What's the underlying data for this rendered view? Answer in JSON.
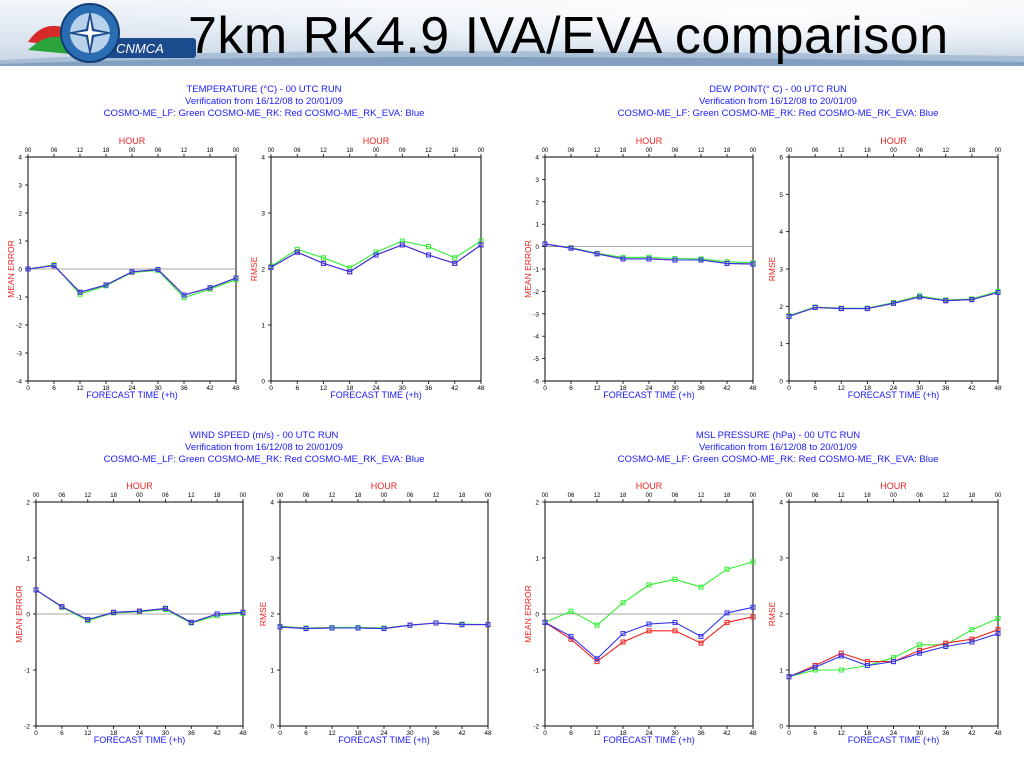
{
  "slide": {
    "title": "7km RK4.9 IVA/EVA comparison",
    "logo_text": "CNMCA"
  },
  "colors": {
    "green": "#33ee33",
    "red": "#ee2222",
    "blue": "#3333ee",
    "title_blue": "#1a1aff",
    "label_red": "#ee2222",
    "axis": "#000000"
  },
  "panels": [
    {
      "id": "temperature",
      "title_line1": "TEMPERATURE (°C) - 00 UTC RUN",
      "title_line2": "Verification from 16/12/08 to 20/01/09",
      "title_line3": "COSMO-ME_LF: Green  COSMO-ME_RK: Red  COSMO-ME_RK_EVA: Blue",
      "hour_label": "HOUR",
      "xlabel": "FORECAST TIME (+h)"
    },
    {
      "id": "dewpoint",
      "title_line1": "DEW POINT(° C) - 00 UTC RUN",
      "title_line2": "Verification from 16/12/08 to 20/01/09",
      "title_line3": "COSMO-ME_LF: Green  COSMO-ME_RK: Red  COSMO-ME_RK_EVA: Blue",
      "hour_label": "HOUR",
      "xlabel": "FORECAST TIME (+h)"
    },
    {
      "id": "windspeed",
      "title_line1": "WIND SPEED (m/s) - 00 UTC RUN",
      "title_line2": "Verification from 16/12/08 to 20/01/09",
      "title_line3": "COSMO-ME_LF: Green  COSMO-ME_RK: Red  COSMO-ME_RK_EVA: Blue",
      "hour_label": "HOUR",
      "xlabel": "FORECAST TIME (+h)"
    },
    {
      "id": "mslpressure",
      "title_line1": "MSL PRESSURE (hPa) - 00 UTC RUN",
      "title_line2": "Verification from 16/12/08 to 20/01/09",
      "title_line3": "COSMO-ME_LF: Green  COSMO-ME_RK: Red  COSMO-ME_RK_EVA: Blue",
      "hour_label": "HOUR",
      "xlabel": "FORECAST TIME (+h)"
    }
  ],
  "chart_data": [
    {
      "type": "line",
      "panel": "temperature",
      "metric": "me",
      "ylabel": "MEAN ERROR",
      "xlabel": "FORECAST TIME (+h)",
      "x": [
        0,
        6,
        12,
        18,
        24,
        30,
        36,
        42,
        48
      ],
      "xlim": [
        0,
        48
      ],
      "ylim": [
        -4,
        4
      ],
      "yticks": [
        -4,
        -3,
        -2,
        -1,
        0,
        1,
        2,
        3,
        4
      ],
      "top_ticks": [
        "00",
        "06",
        "12",
        "18",
        "00",
        "06",
        "12",
        "18",
        "00"
      ],
      "zero_line": true,
      "series": [
        {
          "color": "green",
          "values": [
            0.0,
            0.15,
            -0.9,
            -0.6,
            -0.12,
            -0.05,
            -1.02,
            -0.72,
            -0.38
          ]
        },
        {
          "color": "red",
          "values": [
            0.0,
            0.12,
            -0.83,
            -0.57,
            -0.1,
            -0.02,
            -0.93,
            -0.67,
            -0.32
          ]
        },
        {
          "color": "blue",
          "values": [
            0.0,
            0.12,
            -0.83,
            -0.57,
            -0.1,
            -0.02,
            -0.93,
            -0.67,
            -0.32
          ]
        }
      ]
    },
    {
      "type": "line",
      "panel": "temperature",
      "metric": "rmse",
      "ylabel": "RMSE",
      "xlabel": "FORECAST TIME (+h)",
      "x": [
        0,
        6,
        12,
        18,
        24,
        30,
        36,
        42,
        48
      ],
      "xlim": [
        0,
        48
      ],
      "ylim": [
        0,
        4
      ],
      "yticks": [
        0,
        1,
        2,
        3,
        4
      ],
      "top_ticks": [
        "00",
        "06",
        "12",
        "18",
        "00",
        "06",
        "12",
        "18",
        "00"
      ],
      "zero_line": false,
      "series": [
        {
          "color": "green",
          "values": [
            2.05,
            2.35,
            2.2,
            2.02,
            2.3,
            2.5,
            2.4,
            2.2,
            2.5
          ]
        },
        {
          "color": "red",
          "values": [
            2.03,
            2.3,
            2.1,
            1.95,
            2.25,
            2.43,
            2.25,
            2.1,
            2.43
          ]
        },
        {
          "color": "blue",
          "values": [
            2.03,
            2.3,
            2.1,
            1.95,
            2.25,
            2.43,
            2.25,
            2.1,
            2.43
          ]
        }
      ]
    },
    {
      "type": "line",
      "panel": "dewpoint",
      "metric": "me",
      "ylabel": "MEAN ERROR",
      "xlabel": "FORECAST TIME (+h)",
      "x": [
        0,
        6,
        12,
        18,
        24,
        30,
        36,
        42,
        48
      ],
      "xlim": [
        0,
        48
      ],
      "ylim": [
        -6,
        4
      ],
      "yticks": [
        -6,
        -5,
        -4,
        -3,
        -2,
        -1,
        0,
        1,
        2,
        3,
        4
      ],
      "top_ticks": [
        "00",
        "06",
        "12",
        "18",
        "00",
        "06",
        "12",
        "18",
        "00"
      ],
      "zero_line": true,
      "series": [
        {
          "color": "green",
          "values": [
            0.12,
            -0.05,
            -0.3,
            -0.48,
            -0.48,
            -0.53,
            -0.55,
            -0.68,
            -0.72
          ]
        },
        {
          "color": "red",
          "values": [
            0.12,
            -0.07,
            -0.32,
            -0.55,
            -0.55,
            -0.6,
            -0.6,
            -0.75,
            -0.78
          ]
        },
        {
          "color": "blue",
          "values": [
            0.12,
            -0.07,
            -0.32,
            -0.55,
            -0.55,
            -0.6,
            -0.6,
            -0.75,
            -0.78
          ]
        }
      ]
    },
    {
      "type": "line",
      "panel": "dewpoint",
      "metric": "rmse",
      "ylabel": "RMSE",
      "xlabel": "FORECAST TIME (+h)",
      "x": [
        0,
        6,
        12,
        18,
        24,
        30,
        36,
        42,
        48
      ],
      "xlim": [
        0,
        48
      ],
      "ylim": [
        0,
        6
      ],
      "yticks": [
        0,
        1,
        2,
        3,
        4,
        5,
        6
      ],
      "top_ticks": [
        "00",
        "06",
        "12",
        "18",
        "00",
        "06",
        "12",
        "18",
        "00"
      ],
      "zero_line": false,
      "series": [
        {
          "color": "green",
          "values": [
            1.75,
            1.98,
            1.95,
            1.95,
            2.1,
            2.28,
            2.17,
            2.2,
            2.4
          ]
        },
        {
          "color": "red",
          "values": [
            1.73,
            1.97,
            1.94,
            1.94,
            2.08,
            2.25,
            2.15,
            2.18,
            2.37
          ]
        },
        {
          "color": "blue",
          "values": [
            1.73,
            1.97,
            1.94,
            1.94,
            2.08,
            2.25,
            2.15,
            2.18,
            2.37
          ]
        }
      ]
    },
    {
      "type": "line",
      "panel": "windspeed",
      "metric": "me",
      "ylabel": "MEAN ERROR",
      "xlabel": "FORECAST TIME (+h)",
      "x": [
        0,
        6,
        12,
        18,
        24,
        30,
        36,
        42,
        48
      ],
      "xlim": [
        0,
        48
      ],
      "ylim": [
        -2,
        2
      ],
      "yticks": [
        -2,
        -1,
        0,
        1,
        2
      ],
      "top_ticks": [
        "00",
        "06",
        "12",
        "18",
        "00",
        "06",
        "12",
        "18",
        "00"
      ],
      "zero_line": true,
      "series": [
        {
          "color": "green",
          "values": [
            0.43,
            0.12,
            -0.12,
            0.02,
            0.04,
            0.08,
            -0.16,
            -0.03,
            0.01
          ]
        },
        {
          "color": "red",
          "values": [
            0.43,
            0.13,
            -0.1,
            0.03,
            0.05,
            0.1,
            -0.15,
            0.0,
            0.03
          ]
        },
        {
          "color": "blue",
          "values": [
            0.43,
            0.13,
            -0.1,
            0.03,
            0.05,
            0.1,
            -0.15,
            0.0,
            0.03
          ]
        }
      ]
    },
    {
      "type": "line",
      "panel": "windspeed",
      "metric": "rmse",
      "ylabel": "RMSE",
      "xlabel": "FORECAST TIME (+h)",
      "x": [
        0,
        6,
        12,
        18,
        24,
        30,
        36,
        42,
        48
      ],
      "xlim": [
        0,
        48
      ],
      "ylim": [
        0,
        4
      ],
      "yticks": [
        0,
        1,
        2,
        3,
        4
      ],
      "top_ticks": [
        "00",
        "06",
        "12",
        "18",
        "00",
        "06",
        "12",
        "18",
        "00"
      ],
      "zero_line": false,
      "series": [
        {
          "color": "green",
          "values": [
            1.78,
            1.75,
            1.76,
            1.76,
            1.75,
            1.8,
            1.84,
            1.82,
            1.81
          ]
        },
        {
          "color": "red",
          "values": [
            1.77,
            1.74,
            1.75,
            1.75,
            1.74,
            1.8,
            1.84,
            1.81,
            1.81
          ]
        },
        {
          "color": "blue",
          "values": [
            1.77,
            1.74,
            1.75,
            1.75,
            1.74,
            1.8,
            1.84,
            1.81,
            1.81
          ]
        }
      ]
    },
    {
      "type": "line",
      "panel": "mslpressure",
      "metric": "me",
      "ylabel": "MEAN ERROR",
      "xlabel": "FORECAST TIME (+h)",
      "x": [
        0,
        6,
        12,
        18,
        24,
        30,
        36,
        42,
        48
      ],
      "xlim": [
        0,
        48
      ],
      "ylim": [
        -2,
        2
      ],
      "yticks": [
        -2,
        -1,
        0,
        1,
        2
      ],
      "top_ticks": [
        "00",
        "06",
        "12",
        "18",
        "00",
        "06",
        "12",
        "18",
        "00"
      ],
      "zero_line": true,
      "series": [
        {
          "color": "green",
          "values": [
            -0.15,
            0.05,
            -0.2,
            0.2,
            0.52,
            0.62,
            0.48,
            0.8,
            0.93
          ]
        },
        {
          "color": "red",
          "values": [
            -0.15,
            -0.45,
            -0.85,
            -0.5,
            -0.3,
            -0.3,
            -0.52,
            -0.15,
            -0.05
          ]
        },
        {
          "color": "blue",
          "values": [
            -0.15,
            -0.4,
            -0.8,
            -0.35,
            -0.18,
            -0.15,
            -0.4,
            0.02,
            0.12
          ]
        }
      ]
    },
    {
      "type": "line",
      "panel": "mslpressure",
      "metric": "rmse",
      "ylabel": "RMSE",
      "xlabel": "FORECAST TIME (+h)",
      "x": [
        0,
        6,
        12,
        18,
        24,
        30,
        36,
        42,
        48
      ],
      "xlim": [
        0,
        48
      ],
      "ylim": [
        0,
        4
      ],
      "yticks": [
        0,
        1,
        2,
        3,
        4
      ],
      "top_ticks": [
        "00",
        "06",
        "12",
        "18",
        "00",
        "06",
        "12",
        "18",
        "00"
      ],
      "zero_line": false,
      "series": [
        {
          "color": "green",
          "values": [
            0.88,
            1.0,
            1.0,
            1.08,
            1.22,
            1.45,
            1.45,
            1.72,
            1.92
          ]
        },
        {
          "color": "red",
          "values": [
            0.88,
            1.08,
            1.3,
            1.15,
            1.15,
            1.35,
            1.48,
            1.55,
            1.72
          ]
        },
        {
          "color": "blue",
          "values": [
            0.88,
            1.05,
            1.25,
            1.08,
            1.15,
            1.3,
            1.42,
            1.5,
            1.65
          ]
        }
      ]
    }
  ]
}
